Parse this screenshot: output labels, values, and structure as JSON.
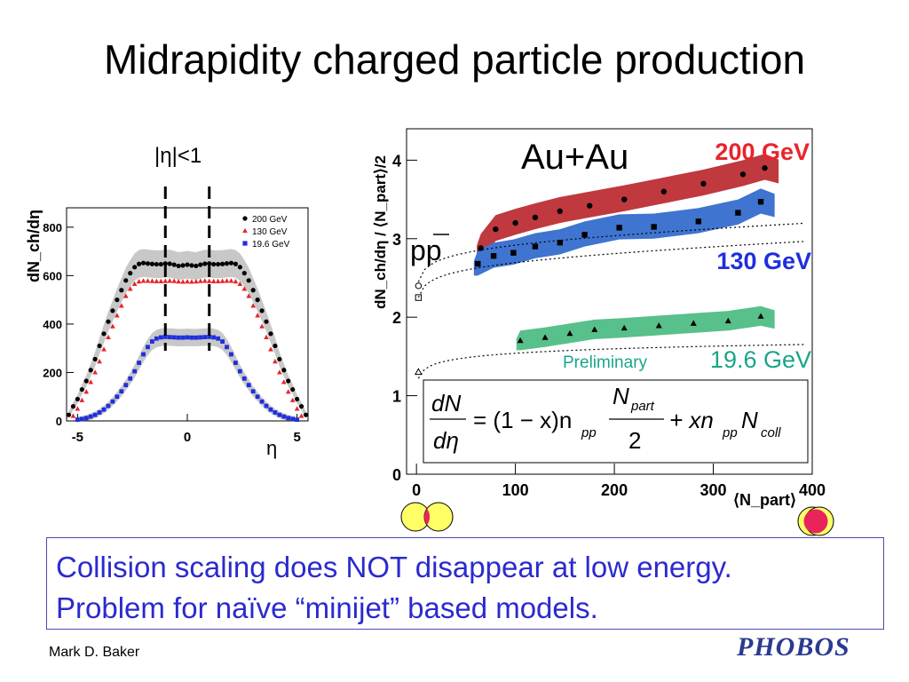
{
  "slide": {
    "title": "Midrapidity charged particle production",
    "conclusion_lines": [
      "Collision scaling does NOT disappear at low energy.",
      "Problem for naïve “minijet” based models."
    ],
    "author": "Mark D. Baker",
    "logo_text": "PHOBOS"
  },
  "colors": {
    "red": "#e8242b",
    "blue": "#1f2fdc",
    "green": "#1aa58a",
    "band_red": "#c0393f",
    "band_blue": "#3f75d0",
    "band_green": "#58c08a",
    "grey_band": "#c8c8c8"
  },
  "chart_data": [
    {
      "type": "scatter",
      "id": "left",
      "ylabel": "dN_ch/dη",
      "xlabel": "η",
      "xlim": [
        -5.5,
        5.5
      ],
      "ylim": [
        0,
        880
      ],
      "xticks": [
        -5,
        0,
        5
      ],
      "yticks": [
        0,
        200,
        400,
        600,
        800
      ],
      "cut_label": "|η|<1",
      "cut_lines_x": [
        -1,
        1
      ],
      "series": [
        {
          "name": "200 GeV",
          "marker": "circle",
          "color": "#000000",
          "x": [
            -5.4,
            -5.2,
            -5.0,
            -4.8,
            -4.6,
            -4.4,
            -4.2,
            -4.0,
            -3.8,
            -3.6,
            -3.4,
            -3.2,
            -3.0,
            -2.8,
            -2.6,
            -2.4,
            -2.2,
            -2.0,
            -1.8,
            -1.6,
            -1.4,
            -1.2,
            -1.0,
            -0.8,
            -0.6,
            -0.4,
            -0.2,
            0.0,
            0.2,
            0.4,
            0.6,
            0.8,
            1.0,
            1.2,
            1.4,
            1.6,
            1.8,
            2.0,
            2.2,
            2.4,
            2.6,
            2.8,
            3.0,
            3.2,
            3.4,
            3.6,
            3.8,
            4.0,
            4.2,
            4.4,
            4.6,
            4.8,
            5.0,
            5.2,
            5.4
          ],
          "y": [
            25,
            60,
            90,
            130,
            165,
            210,
            255,
            310,
            360,
            410,
            455,
            500,
            540,
            580,
            610,
            635,
            648,
            652,
            650,
            648,
            647,
            647,
            650,
            649,
            645,
            640,
            642,
            645,
            642,
            640,
            645,
            649,
            650,
            647,
            647,
            648,
            650,
            652,
            648,
            635,
            610,
            580,
            540,
            500,
            455,
            410,
            360,
            310,
            255,
            210,
            165,
            130,
            90,
            60,
            25
          ]
        },
        {
          "name": "130 GeV",
          "marker": "triangle",
          "color": "#e8242b",
          "x": [
            -5.2,
            -5.0,
            -4.8,
            -4.6,
            -4.4,
            -4.2,
            -4.0,
            -3.8,
            -3.6,
            -3.4,
            -3.2,
            -3.0,
            -2.8,
            -2.6,
            -2.4,
            -2.2,
            -2.0,
            -1.8,
            -1.6,
            -1.4,
            -1.2,
            -1.0,
            -0.8,
            -0.6,
            -0.4,
            -0.2,
            0.0,
            0.2,
            0.4,
            0.6,
            0.8,
            1.0,
            1.2,
            1.4,
            1.6,
            1.8,
            2.0,
            2.2,
            2.4,
            2.6,
            2.8,
            3.0,
            3.2,
            3.4,
            3.6,
            3.8,
            4.0,
            4.2,
            4.4,
            4.6,
            4.8,
            5.0,
            5.2
          ],
          "y": [
            20,
            50,
            85,
            120,
            160,
            200,
            245,
            295,
            345,
            390,
            435,
            475,
            515,
            545,
            565,
            575,
            578,
            578,
            577,
            576,
            576,
            577,
            578,
            577,
            575,
            574,
            575,
            574,
            575,
            577,
            578,
            577,
            576,
            576,
            577,
            578,
            578,
            575,
            565,
            545,
            515,
            475,
            435,
            390,
            345,
            295,
            245,
            200,
            160,
            120,
            85,
            50,
            20
          ]
        },
        {
          "name": "19.6 GeV",
          "marker": "square",
          "color": "#1f2fdc",
          "x": [
            -5.0,
            -4.8,
            -4.6,
            -4.4,
            -4.2,
            -4.0,
            -3.8,
            -3.6,
            -3.4,
            -3.2,
            -3.0,
            -2.8,
            -2.6,
            -2.4,
            -2.2,
            -2.0,
            -1.8,
            -1.6,
            -1.4,
            -1.2,
            -1.0,
            -0.8,
            -0.6,
            -0.4,
            -0.2,
            0.0,
            0.2,
            0.4,
            0.6,
            0.8,
            1.0,
            1.2,
            1.4,
            1.6,
            1.8,
            2.0,
            2.2,
            2.4,
            2.6,
            2.8,
            3.0,
            3.2,
            3.4,
            3.6,
            3.8,
            4.0,
            4.2,
            4.4,
            4.6,
            4.8,
            5.0
          ],
          "y": [
            5,
            8,
            12,
            18,
            25,
            35,
            47,
            62,
            80,
            100,
            122,
            148,
            175,
            205,
            240,
            275,
            305,
            328,
            340,
            345,
            347,
            346,
            345,
            344,
            344,
            345,
            344,
            344,
            345,
            346,
            347,
            345,
            340,
            328,
            305,
            275,
            240,
            205,
            175,
            148,
            122,
            100,
            80,
            62,
            47,
            35,
            25,
            18,
            12,
            8,
            5
          ]
        }
      ]
    },
    {
      "type": "scatter",
      "id": "right",
      "ylabel": "dN_ch/dη / ⟨N_part⟩/2",
      "xlabel": "⟨N_part⟩",
      "xlim": [
        -10,
        400
      ],
      "ylim": [
        0,
        4.4
      ],
      "xticks": [
        0,
        100,
        200,
        300,
        400
      ],
      "yticks": [
        0,
        1,
        2,
        3,
        4
      ],
      "system_label": "Au+Au",
      "pp_label": "pp",
      "preliminary_label": "Preliminary",
      "series": [
        {
          "name": "200 GeV",
          "marker": "circle",
          "color": "#000000",
          "band": "#c0393f",
          "x": [
            65,
            80,
            100,
            120,
            145,
            175,
            210,
            250,
            290,
            330,
            352
          ],
          "y": [
            2.88,
            3.12,
            3.2,
            3.27,
            3.35,
            3.42,
            3.5,
            3.6,
            3.7,
            3.82,
            3.9
          ]
        },
        {
          "name": "130 GeV",
          "marker": "square",
          "color": "#000000",
          "band": "#3f75d0",
          "x": [
            62,
            78,
            98,
            120,
            145,
            170,
            205,
            240,
            285,
            325,
            348
          ],
          "y": [
            2.68,
            2.78,
            2.82,
            2.9,
            2.95,
            3.05,
            3.14,
            3.15,
            3.22,
            3.33,
            3.47
          ]
        },
        {
          "name": "19.6 GeV",
          "marker": "triangle",
          "color": "#000000",
          "band": "#58c08a",
          "x": [
            105,
            130,
            155,
            180,
            210,
            245,
            280,
            315,
            348
          ],
          "y": [
            1.7,
            1.74,
            1.79,
            1.84,
            1.86,
            1.89,
            1.92,
            1.95,
            2.01
          ]
        },
        {
          "name": "pp open",
          "marker": "open",
          "color": "#000000",
          "x": [
            2,
            2,
            2
          ],
          "y": [
            2.4,
            2.25,
            1.3
          ]
        }
      ],
      "band_labels": {
        "s200": "200 GeV",
        "s130": "130 GeV",
        "s19": "19.6 GeV"
      },
      "formula": {
        "lhs_num": "dN",
        "lhs_den": "dη",
        "rhs1": "= (1 − x)n",
        "rhs1_sub": "pp",
        "frac_num": "N",
        "frac_num_sub": "part",
        "frac_den": "2",
        "rhs2": "+ xn",
        "rhs2_sub": "pp",
        "rhs3": "N",
        "rhs3_sub": "coll"
      }
    }
  ]
}
